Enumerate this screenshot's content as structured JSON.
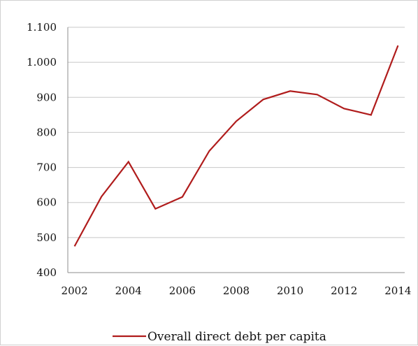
{
  "chart_data": {
    "type": "line",
    "title": "",
    "xlabel": "",
    "ylabel": "",
    "x": [
      2002,
      2003,
      2004,
      2005,
      2006,
      2007,
      2008,
      2009,
      2010,
      2011,
      2012,
      2013,
      2014
    ],
    "x_tick_labels": [
      "2002",
      "2004",
      "2006",
      "2008",
      "2010",
      "2012",
      "2014"
    ],
    "x_tick_values": [
      2002,
      2004,
      2006,
      2008,
      2010,
      2012,
      2014
    ],
    "xlim": [
      2001.75,
      2014.25
    ],
    "y_tick_labels": [
      "400",
      "500",
      "600",
      "700",
      "800",
      "900",
      "1.000",
      "1.100"
    ],
    "y_tick_values": [
      400,
      500,
      600,
      700,
      800,
      900,
      1000,
      1100
    ],
    "ylim": [
      400,
      1100
    ],
    "grid": "horizontal",
    "legend_position": "bottom",
    "series": [
      {
        "name": "Overall direct debt per capita",
        "color": "#b01c1c",
        "values": [
          475,
          617,
          716,
          582,
          616,
          747,
          832,
          894,
          918,
          908,
          868,
          850,
          1048
        ]
      }
    ]
  }
}
